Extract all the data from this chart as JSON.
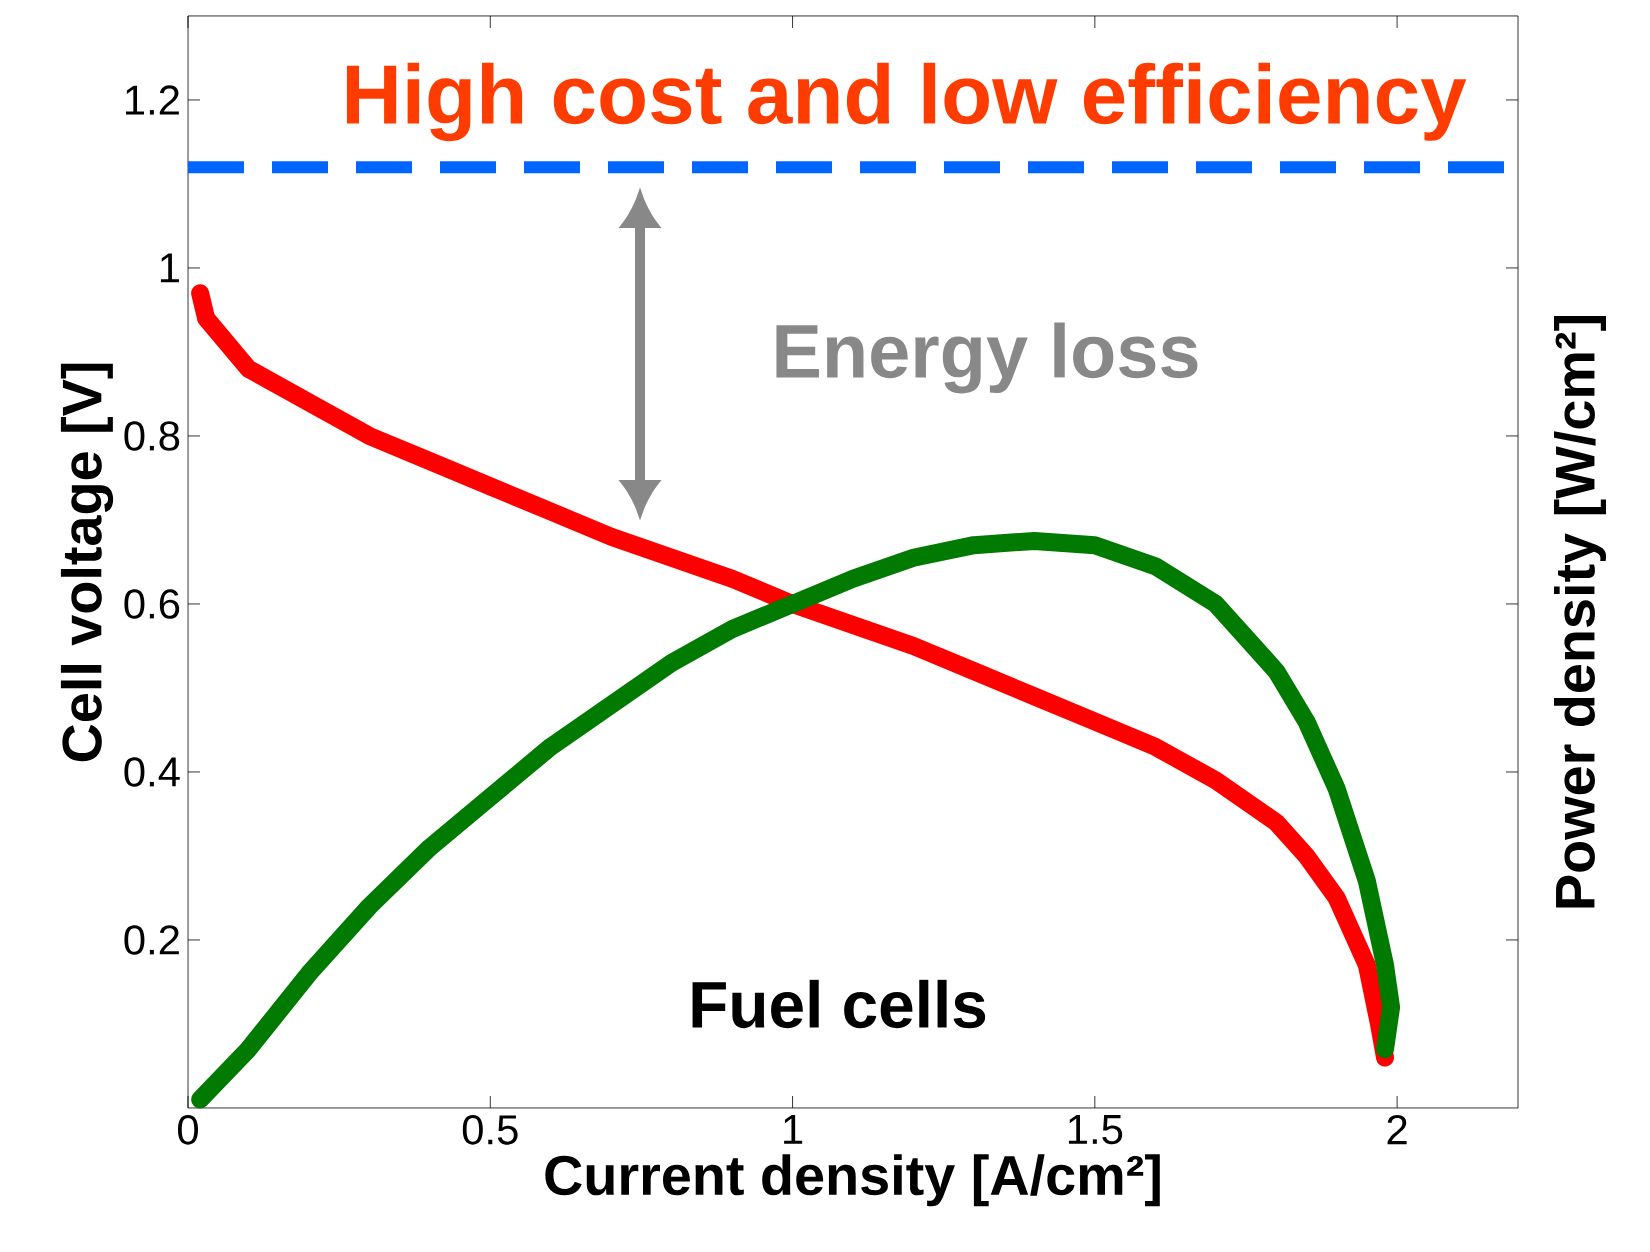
{
  "chart_data": {
    "type": "line",
    "xlabel": "Current density [A/cm²]",
    "ylabel": "Cell voltage [V]",
    "y2label": "Power density [W/cm²]",
    "annotations": [
      "High cost and low efficiency",
      "Energy  loss",
      "Fuel cells"
    ],
    "xlim": [
      0,
      2.2
    ],
    "ylim": [
      0,
      1.3
    ],
    "xticks": [
      0,
      0.5,
      1,
      1.5,
      2
    ],
    "yticks": [
      0.2,
      0.4,
      0.6,
      0.8,
      1,
      1.2
    ],
    "line_style": "solid",
    "grid": false,
    "ref_lines": [
      {
        "axis": "y",
        "value": 1.12,
        "color": "#0066ff",
        "line_style": "dashed"
      }
    ],
    "series": [
      {
        "color": "#ff0000",
        "x": [
          0.02,
          0.03,
          0.1,
          0.2,
          0.3,
          0.4,
          0.5,
          0.6,
          0.7,
          0.8,
          0.9,
          1.0,
          1.1,
          1.2,
          1.3,
          1.4,
          1.5,
          1.6,
          1.7,
          1.8,
          1.85,
          1.9,
          1.95,
          1.97,
          1.98
        ],
        "values": [
          0.97,
          0.94,
          0.88,
          0.84,
          0.8,
          0.77,
          0.74,
          0.71,
          0.68,
          0.655,
          0.63,
          0.6,
          0.575,
          0.55,
          0.52,
          0.49,
          0.46,
          0.43,
          0.39,
          0.34,
          0.3,
          0.25,
          0.17,
          0.1,
          0.06
        ]
      },
      {
        "color": "#007a00",
        "x": [
          0.02,
          0.1,
          0.2,
          0.3,
          0.4,
          0.5,
          0.6,
          0.7,
          0.8,
          0.9,
          1.0,
          1.1,
          1.2,
          1.3,
          1.4,
          1.5,
          1.6,
          1.7,
          1.8,
          1.85,
          1.9,
          1.95,
          1.98,
          1.99,
          1.98
        ],
        "values": [
          0.01,
          0.07,
          0.16,
          0.24,
          0.31,
          0.37,
          0.43,
          0.48,
          0.53,
          0.57,
          0.6,
          0.63,
          0.655,
          0.67,
          0.675,
          0.67,
          0.645,
          0.6,
          0.52,
          0.46,
          0.38,
          0.27,
          0.17,
          0.12,
          0.07
        ]
      }
    ]
  }
}
